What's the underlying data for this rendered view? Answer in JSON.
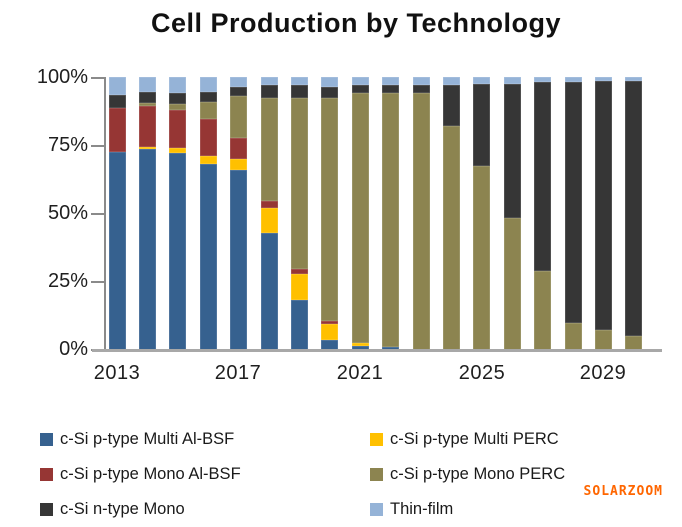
{
  "title": "Cell Production by Technology",
  "watermark": {
    "text": "SOLARZOOM",
    "color": "#FF6600"
  },
  "axes": {
    "y_tick_labels": [
      "100%",
      "75%",
      "50%",
      "25%",
      "0%"
    ],
    "x_tick_labels": [
      "2013",
      "2017",
      "2021",
      "2025",
      "2029"
    ]
  },
  "chart_data": {
    "type": "bar",
    "stacked": true,
    "percent_stacked": true,
    "title": "Cell Production by Technology",
    "categories": [
      2013,
      2014,
      2015,
      2016,
      2017,
      2018,
      2019,
      2020,
      2021,
      2022,
      2023,
      2024,
      2025,
      2026,
      2027,
      2028,
      2029,
      2030
    ],
    "x_tick_labels": [
      "2013",
      "2017",
      "2021",
      "2025",
      "2029"
    ],
    "y_tick_labels": [
      "100%",
      "75%",
      "50%",
      "25%",
      "0%"
    ],
    "ylim": [
      0,
      100
    ],
    "grid": false,
    "legend_position": "bottom",
    "stack_order": "first series at bottom",
    "series": [
      {
        "name": "c-Si p-type Multi Al-BSF",
        "color": "#36618F",
        "values": [
          72.5,
          73.5,
          72,
          68,
          66,
          43,
          18.5,
          3.5,
          1.5,
          1,
          0,
          0,
          0,
          0,
          0,
          0,
          0,
          0
        ]
      },
      {
        "name": "c-Si p-type Multi PERC",
        "color": "#FFC000",
        "values": [
          0,
          1,
          2,
          3,
          4,
          9,
          9.5,
          6,
          1,
          0,
          0,
          0,
          0,
          0,
          0,
          0,
          0,
          0
        ]
      },
      {
        "name": "c-Si p-type Mono Al-BSF",
        "color": "#963634",
        "values": [
          16,
          15,
          14,
          13.5,
          7.5,
          2.5,
          1.5,
          1,
          0,
          0,
          0,
          0,
          0,
          0,
          0,
          0,
          0,
          0
        ]
      },
      {
        "name": "c-Si p-type Mono PERC",
        "color": "#8C8450",
        "values": [
          0,
          1,
          2,
          6.5,
          15.5,
          38,
          63,
          82,
          91.5,
          93,
          94,
          82,
          67.5,
          48.5,
          29,
          10,
          7.5,
          5
        ]
      },
      {
        "name": "c-Si n-type Mono",
        "color": "#363636",
        "values": [
          5,
          4,
          4,
          3.5,
          3.5,
          4.5,
          4.5,
          4,
          3,
          3,
          3,
          15,
          30,
          49,
          69,
          88,
          91,
          93.5
        ]
      },
      {
        "name": "Thin-film",
        "color": "#95B3D7",
        "values": [
          6.5,
          5.5,
          6,
          5.5,
          3.5,
          3,
          3,
          3.5,
          3,
          3,
          3,
          3,
          2.5,
          2.5,
          2,
          2,
          1.5,
          1.5
        ]
      }
    ]
  },
  "legend": {
    "items": [
      {
        "label": "c-Si p-type Multi Al-BSF",
        "color": "#36618F"
      },
      {
        "label": "c-Si p-type Multi PERC",
        "color": "#FFC000"
      },
      {
        "label": "c-Si p-type Mono Al-BSF",
        "color": "#963634"
      },
      {
        "label": "c-Si p-type Mono PERC",
        "color": "#8C8450"
      },
      {
        "label": "c-Si n-type Mono",
        "color": "#363636"
      },
      {
        "label": "Thin-film",
        "color": "#95B3D7"
      }
    ]
  }
}
